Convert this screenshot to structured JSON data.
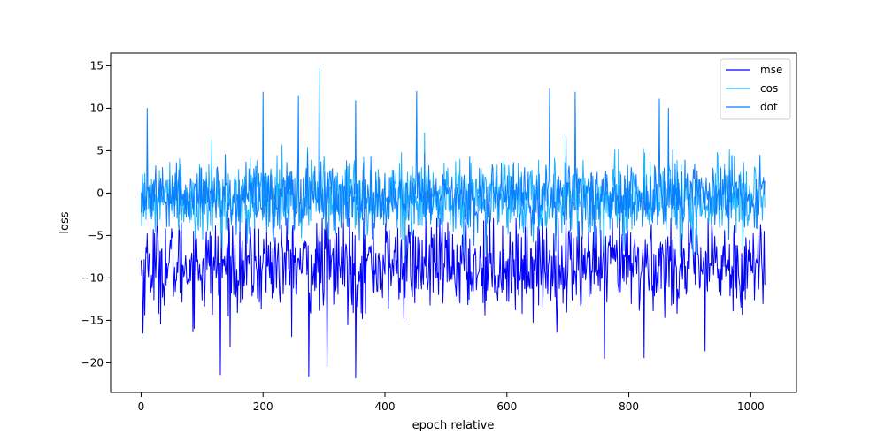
{
  "chart_data": {
    "type": "line",
    "xlabel": "epoch relative",
    "ylabel": "loss",
    "xlim": [
      -50,
      1075
    ],
    "ylim": [
      -23.5,
      16.5
    ],
    "xticks": [
      0,
      200,
      400,
      600,
      800,
      1000
    ],
    "yticks": [
      -20,
      -15,
      -10,
      -5,
      0,
      5,
      10,
      15
    ],
    "legend_position": "top-right",
    "grid": false,
    "n_points": 1024,
    "series": [
      {
        "name": "mse",
        "color": "#0000ff",
        "mean": -8.5,
        "typical_range": [
          -14,
          -3
        ],
        "min": -21.8,
        "max": -3.0,
        "extremes": [
          {
            "x": 3,
            "y": -16.5
          },
          {
            "x": 130,
            "y": -21.4
          },
          {
            "x": 275,
            "y": -21.6
          },
          {
            "x": 305,
            "y": -20.5
          },
          {
            "x": 352,
            "y": -21.8
          },
          {
            "x": 760,
            "y": -19.5
          },
          {
            "x": 825,
            "y": -19.4
          },
          {
            "x": 925,
            "y": -18.6
          }
        ]
      },
      {
        "name": "cos",
        "color": "#1fb4ff",
        "mean": -0.6,
        "typical_range": [
          -6,
          3
        ],
        "min": -10.5,
        "max": 7.5,
        "extremes": []
      },
      {
        "name": "dot",
        "color": "#0a7fff",
        "mean": -0.4,
        "typical_range": [
          -4,
          4
        ],
        "min": -8.0,
        "max": 14.7,
        "extremes": [
          {
            "x": 10,
            "y": 10.0
          },
          {
            "x": 200,
            "y": 11.9
          },
          {
            "x": 258,
            "y": 11.4
          },
          {
            "x": 292,
            "y": 14.7
          },
          {
            "x": 352,
            "y": 10.9
          },
          {
            "x": 452,
            "y": 12.0
          },
          {
            "x": 670,
            "y": 12.3
          },
          {
            "x": 712,
            "y": 11.9
          },
          {
            "x": 850,
            "y": 11.1
          },
          {
            "x": 865,
            "y": 10.0
          }
        ]
      }
    ]
  }
}
